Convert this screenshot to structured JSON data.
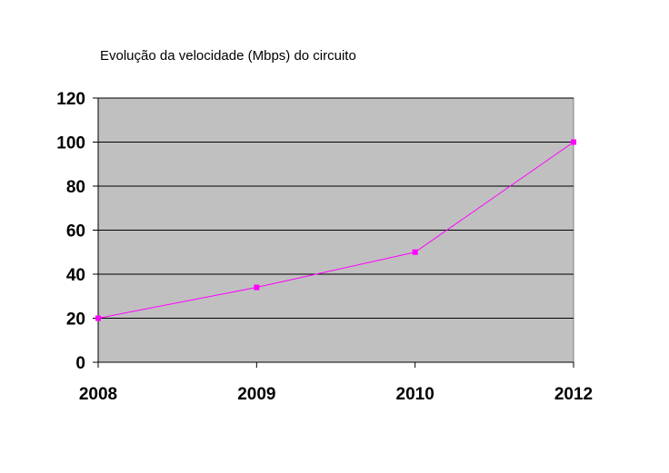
{
  "chart_data": {
    "type": "line",
    "title": "Evolução da velocidade (Mbps) do circuito",
    "xlabel": "",
    "ylabel": "",
    "categories": [
      "2008",
      "2009",
      "2010",
      "2012"
    ],
    "series": [
      {
        "name": "",
        "values": [
          20,
          34,
          50,
          100
        ],
        "color": "#ff00ff"
      }
    ],
    "ylim": [
      0,
      120
    ],
    "yticks": [
      0,
      20,
      40,
      60,
      80,
      100,
      120
    ],
    "grid": true,
    "legend": "none",
    "colors": {
      "plot_background": "#c0c0c0",
      "gridline": "#000000",
      "axis": "#000000",
      "series": "#ff00ff"
    }
  }
}
